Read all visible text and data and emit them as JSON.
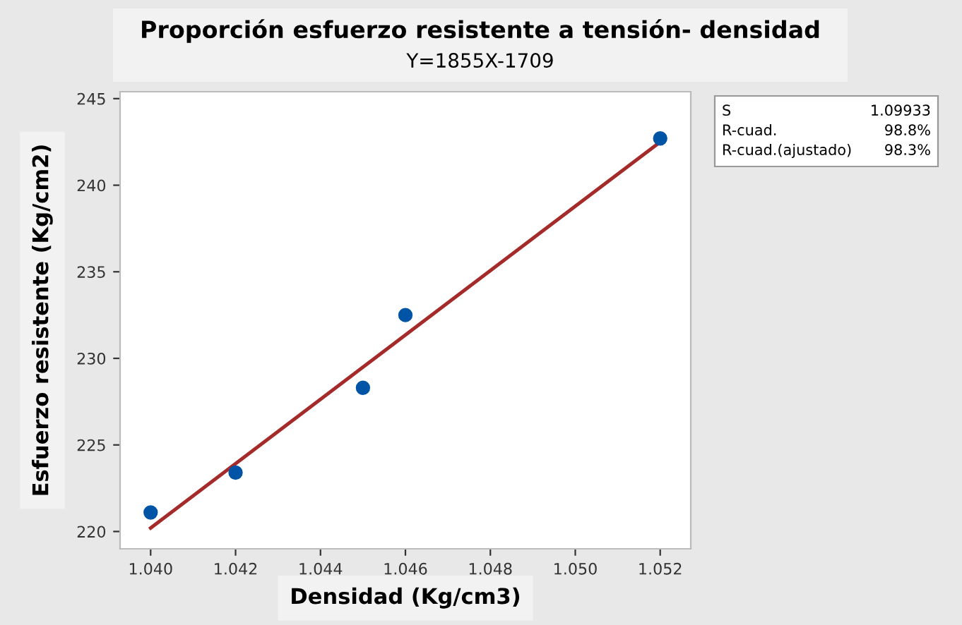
{
  "chart_data": {
    "type": "scatter",
    "title": "Proporción esfuerzo resistente a tensión- densidad",
    "subtitle": "Y=1855X-1709",
    "xlabel": "Densidad (Kg/cm3)",
    "ylabel": "Esfuerzo resistente (Kg/cm2)",
    "series": [
      {
        "marker": "circle",
        "color": "#0054a6",
        "x": [
          1.04,
          1.042,
          1.045,
          1.046,
          1.052
        ],
        "values": [
          221.1,
          223.4,
          228.3,
          232.5,
          242.7
        ]
      },
      {
        "type": "line",
        "marker": "none",
        "color": "#a52a2a",
        "x": [
          1.04,
          1.052
        ],
        "values": [
          220.2,
          242.5
        ]
      }
    ],
    "xlim": [
      1.03928,
      1.05272
    ],
    "ylim": [
      219.0,
      245.4
    ],
    "xticks": [
      {
        "value": 1.04,
        "label": "1.040"
      },
      {
        "value": 1.042,
        "label": "1.042"
      },
      {
        "value": 1.044,
        "label": "1.044"
      },
      {
        "value": 1.046,
        "label": "1.046"
      },
      {
        "value": 1.048,
        "label": "1.048"
      },
      {
        "value": 1.05,
        "label": "1.050"
      },
      {
        "value": 1.052,
        "label": "1.052"
      }
    ],
    "yticks": [
      220,
      225,
      230,
      235,
      240,
      245
    ],
    "grid": false,
    "legend": false,
    "annotations": [
      "S",
      "1.09933",
      "R-cuad.",
      "98.8%",
      "R-cuad.(ajustado)",
      "98.3%"
    ]
  }
}
